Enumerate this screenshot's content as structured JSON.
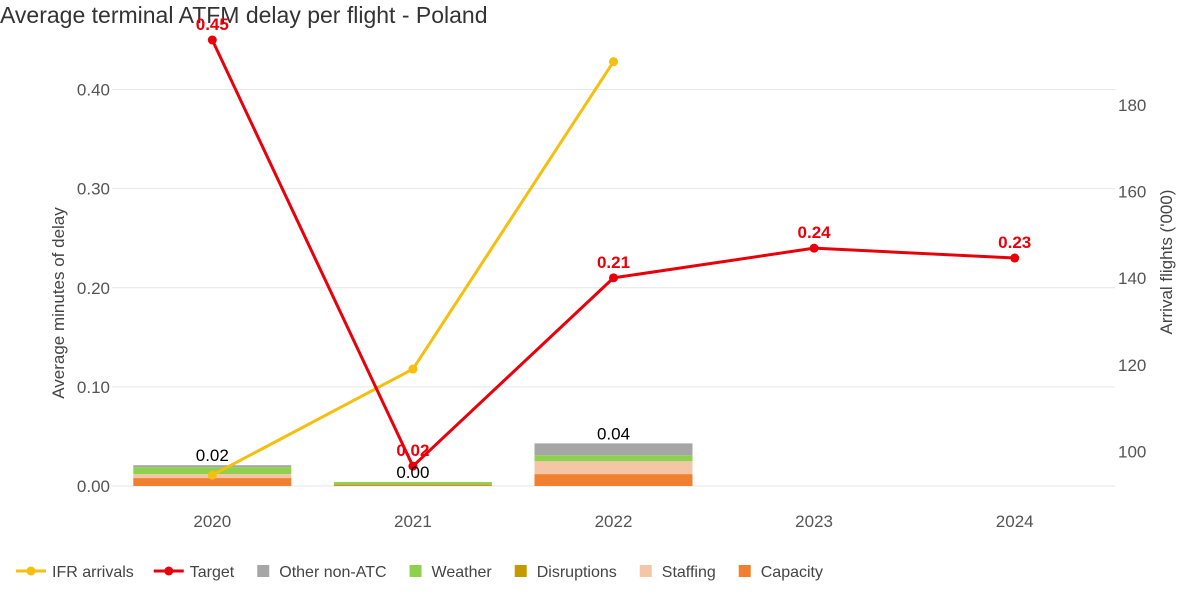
{
  "title": "Average terminal ATFM delay per flight - Poland",
  "chart_data": {
    "type": "bar",
    "categories": [
      "2020",
      "2021",
      "2022",
      "2023",
      "2024"
    ],
    "left_axis": {
      "label": "Average minutes of delay",
      "range": [
        0,
        0.45
      ],
      "ticks": [
        0.0,
        0.1,
        0.2,
        0.3,
        0.4
      ],
      "tick_labels": [
        "0.00",
        "0.10",
        "0.20",
        "0.30",
        "0.40"
      ]
    },
    "right_axis": {
      "label": "Arrival flights ('000)",
      "range": [
        92,
        195
      ],
      "ticks": [
        100,
        120,
        140,
        160,
        180
      ],
      "tick_labels": [
        "100",
        "120",
        "140",
        "160",
        "180"
      ]
    },
    "grid": true,
    "legend_position": "bottom-left",
    "stacked_series": [
      {
        "name": "Capacity",
        "color": "#f07f30",
        "values": [
          0.008,
          0.001,
          0.012,
          null,
          null
        ]
      },
      {
        "name": "Staffing",
        "color": "#f5c6a5",
        "values": [
          0.004,
          0.0,
          0.013,
          null,
          null
        ]
      },
      {
        "name": "Disruptions",
        "color": "#c49a00",
        "values": [
          0.0,
          0.0,
          0.0,
          null,
          null
        ]
      },
      {
        "name": "Weather",
        "color": "#8ed14f",
        "values": [
          0.007,
          0.003,
          0.006,
          null,
          null
        ]
      },
      {
        "name": "Other non-ATC",
        "color": "#a6a6a6",
        "values": [
          0.002,
          0.0,
          0.012,
          null,
          null
        ]
      }
    ],
    "bar_totals": [
      "0.02",
      "0.00",
      "0.04",
      null,
      null
    ],
    "line_series": [
      {
        "name": "IFR arrivals",
        "axis": "right",
        "color": "#f5bf0f",
        "values": [
          94.5,
          119,
          190,
          null,
          null
        ]
      },
      {
        "name": "Target",
        "axis": "left",
        "color": "#e8000b",
        "values": [
          0.45,
          0.02,
          0.21,
          0.24,
          0.23
        ],
        "labels": [
          "0.45",
          "0.02",
          "0.21",
          "0.24",
          "0.23"
        ]
      }
    ],
    "legend": [
      "IFR arrivals",
      "Target",
      "Other non-ATC",
      "Weather",
      "Disruptions",
      "Staffing",
      "Capacity"
    ]
  }
}
